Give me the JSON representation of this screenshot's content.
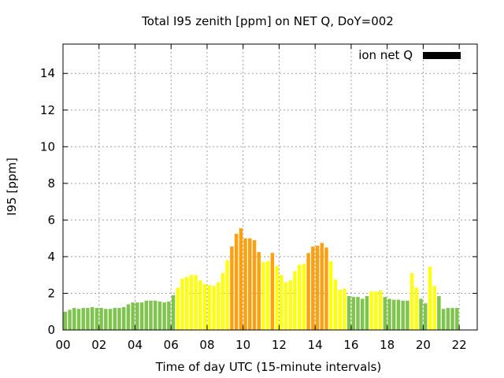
{
  "chart_data": {
    "type": "bar",
    "title": "Total I95 zenith [ppm] on NET Q, DoY=002",
    "xlabel": "Time of day UTC (15-minute intervals)",
    "ylabel": "I95 [ppm]",
    "xlim": [
      0,
      23
    ],
    "ylim": [
      0,
      15.6
    ],
    "x_ticks": [
      "00",
      "02",
      "04",
      "06",
      "08",
      "10",
      "12",
      "14",
      "16",
      "18",
      "20",
      "22"
    ],
    "y_ticks": [
      "0",
      "2",
      "4",
      "6",
      "8",
      "10",
      "12",
      "14"
    ],
    "grid": true,
    "legend": {
      "position": "top-right",
      "entries": [
        {
          "label": "ion net Q",
          "color": "#000000"
        }
      ]
    },
    "colors": {
      "low": "#7fc44c",
      "medium": "#ffff10",
      "high": "#ffa010"
    },
    "values": [
      1.0,
      1.1,
      1.2,
      1.15,
      1.2,
      1.2,
      1.25,
      1.2,
      1.2,
      1.15,
      1.15,
      1.2,
      1.2,
      1.25,
      1.4,
      1.5,
      1.5,
      1.5,
      1.6,
      1.6,
      1.6,
      1.55,
      1.5,
      1.55,
      1.9,
      2.3,
      2.8,
      2.9,
      3.0,
      3.0,
      2.7,
      2.5,
      2.45,
      2.4,
      2.6,
      3.1,
      3.8,
      4.55,
      5.25,
      5.55,
      5.0,
      5.0,
      4.9,
      4.25,
      3.7,
      3.75,
      4.2,
      3.5,
      3.0,
      2.6,
      2.7,
      3.2,
      3.55,
      3.6,
      4.2,
      4.55,
      4.6,
      4.75,
      4.5,
      3.75,
      2.75,
      2.2,
      2.25,
      1.85,
      1.8,
      1.8,
      1.7,
      1.85,
      2.1,
      2.1,
      2.15,
      1.8,
      1.7,
      1.65,
      1.65,
      1.6,
      1.6,
      3.1,
      2.3,
      1.7,
      1.45,
      3.45,
      2.4,
      1.85,
      1.15,
      1.2,
      1.2,
      1.2
    ],
    "levels": [
      "low",
      "low",
      "low",
      "low",
      "low",
      "low",
      "low",
      "low",
      "low",
      "low",
      "low",
      "low",
      "low",
      "low",
      "low",
      "low",
      "low",
      "low",
      "low",
      "low",
      "low",
      "low",
      "low",
      "low",
      "low",
      "medium",
      "medium",
      "medium",
      "medium",
      "medium",
      "medium",
      "medium",
      "medium",
      "medium",
      "medium",
      "medium",
      "medium",
      "high",
      "high",
      "high",
      "high",
      "high",
      "high",
      "high",
      "medium",
      "medium",
      "high",
      "medium",
      "medium",
      "medium",
      "medium",
      "medium",
      "medium",
      "medium",
      "high",
      "high",
      "high",
      "high",
      "high",
      "medium",
      "medium",
      "medium",
      "medium",
      "low",
      "low",
      "low",
      "low",
      "low",
      "medium",
      "medium",
      "medium",
      "low",
      "low",
      "low",
      "low",
      "low",
      "low",
      "medium",
      "medium",
      "low",
      "low",
      "medium",
      "medium",
      "low",
      "low",
      "low",
      "low",
      "low"
    ]
  }
}
